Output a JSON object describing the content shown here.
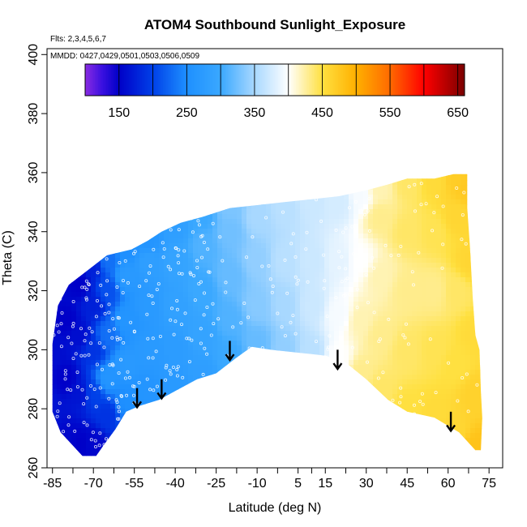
{
  "chart_data": {
    "type": "heatmap",
    "title": "ATOM4 Southbound Sunlight_Exposure",
    "subtitle_flights": "Flts: 2,3,4,5,6,7",
    "subtitle_dates": "MMDD: 0427,0429,0501,0503,0506,0509",
    "xlabel": "Latitude (deg N)",
    "ylabel": "Theta (C)",
    "xlim": [
      -87,
      80
    ],
    "ylim": [
      260,
      402
    ],
    "x_ticks": [
      -85,
      -70,
      -55,
      -40,
      -25,
      -10,
      5,
      15,
      30,
      45,
      60,
      75
    ],
    "x_tick_labels": [
      "-85",
      "-70",
      "-55",
      "-40",
      "-25",
      "-10",
      "5",
      "15",
      "30",
      "45",
      "60",
      "75"
    ],
    "x_minor_ticks": [
      -77.5,
      -62.5,
      -47.5,
      -32.5,
      -17.5,
      -2.5,
      10,
      22.5,
      37.5,
      52.5,
      67.5
    ],
    "y_ticks": [
      260,
      280,
      300,
      320,
      340,
      360,
      380,
      400
    ],
    "y_tick_labels": [
      "260",
      "280",
      "300",
      "320",
      "340",
      "360",
      "380",
      "400"
    ],
    "colorbar": {
      "min": 100,
      "max": 660,
      "ticks": [
        150,
        250,
        350,
        450,
        550,
        650
      ],
      "tick_labels": [
        "150",
        "250",
        "350",
        "450",
        "550",
        "650"
      ],
      "divisions": [
        150,
        200,
        250,
        300,
        350,
        400,
        450,
        500,
        550,
        600,
        650
      ],
      "stops": [
        {
          "value": 100,
          "color": "#8a2be2"
        },
        {
          "value": 125,
          "color": "#3a10e0"
        },
        {
          "value": 150,
          "color": "#0000c8"
        },
        {
          "value": 200,
          "color": "#0040e8"
        },
        {
          "value": 250,
          "color": "#1e90ff"
        },
        {
          "value": 300,
          "color": "#3aa8ff"
        },
        {
          "value": 350,
          "color": "#a8d8ff"
        },
        {
          "value": 400,
          "color": "#ffffff"
        },
        {
          "value": 450,
          "color": "#ffe040"
        },
        {
          "value": 500,
          "color": "#ffb000"
        },
        {
          "value": 550,
          "color": "#ff6a00"
        },
        {
          "value": 600,
          "color": "#ff0000"
        },
        {
          "value": 660,
          "color": "#7a0000"
        }
      ]
    },
    "domain_outline": [
      [
        -85,
        279
      ],
      [
        -85,
        302
      ],
      [
        -83,
        315
      ],
      [
        -79,
        322
      ],
      [
        -72,
        327
      ],
      [
        -65,
        332
      ],
      [
        -56,
        334
      ],
      [
        -50,
        337
      ],
      [
        -45,
        340
      ],
      [
        -38,
        343
      ],
      [
        -30,
        345
      ],
      [
        -20,
        348
      ],
      [
        -10,
        349
      ],
      [
        0,
        350
      ],
      [
        10,
        351
      ],
      [
        20,
        352
      ],
      [
        30,
        354
      ],
      [
        38,
        356
      ],
      [
        45,
        358
      ],
      [
        55,
        358
      ],
      [
        62,
        359.5
      ],
      [
        67,
        359.5
      ],
      [
        67,
        348
      ],
      [
        68,
        335
      ],
      [
        69,
        318
      ],
      [
        70,
        305
      ],
      [
        71.5,
        300
      ],
      [
        72,
        286
      ],
      [
        72.5,
        277
      ],
      [
        72,
        266
      ],
      [
        70,
        266
      ],
      [
        64,
        272
      ],
      [
        55,
        277
      ],
      [
        45,
        279
      ],
      [
        38,
        283
      ],
      [
        30,
        290
      ],
      [
        22,
        296
      ],
      [
        15,
        298
      ],
      [
        5,
        299
      ],
      [
        -5,
        300
      ],
      [
        -12,
        301
      ],
      [
        -18,
        297
      ],
      [
        -25,
        292
      ],
      [
        -32,
        290
      ],
      [
        -40,
        286
      ],
      [
        -46,
        283
      ],
      [
        -53,
        281
      ],
      [
        -58,
        279
      ],
      [
        -62,
        273
      ],
      [
        -66,
        268
      ],
      [
        -69,
        264
      ],
      [
        -74,
        264
      ],
      [
        -78,
        268
      ],
      [
        -82,
        272
      ]
    ],
    "field_samples": [
      [
        -85,
        280,
        165
      ],
      [
        -85,
        300,
        160
      ],
      [
        -80,
        270,
        155
      ],
      [
        -80,
        290,
        150
      ],
      [
        -80,
        310,
        150
      ],
      [
        -75,
        268,
        150
      ],
      [
        -75,
        285,
        165
      ],
      [
        -75,
        305,
        160
      ],
      [
        -75,
        322,
        150
      ],
      [
        -70,
        268,
        155
      ],
      [
        -70,
        285,
        200
      ],
      [
        -70,
        300,
        190
      ],
      [
        -70,
        315,
        175
      ],
      [
        -70,
        328,
        175
      ],
      [
        -65,
        278,
        190
      ],
      [
        -65,
        290,
        260
      ],
      [
        -65,
        305,
        230
      ],
      [
        -65,
        320,
        210
      ],
      [
        -65,
        330,
        230
      ],
      [
        -58,
        282,
        250
      ],
      [
        -58,
        295,
        270
      ],
      [
        -58,
        310,
        260
      ],
      [
        -58,
        325,
        270
      ],
      [
        -58,
        334,
        250
      ],
      [
        -50,
        285,
        260
      ],
      [
        -50,
        300,
        270
      ],
      [
        -50,
        315,
        270
      ],
      [
        -50,
        330,
        280
      ],
      [
        -50,
        337,
        260
      ],
      [
        -40,
        288,
        270
      ],
      [
        -40,
        300,
        275
      ],
      [
        -40,
        315,
        285
      ],
      [
        -40,
        330,
        290
      ],
      [
        -40,
        342,
        280
      ],
      [
        -30,
        292,
        280
      ],
      [
        -30,
        305,
        290
      ],
      [
        -30,
        320,
        300
      ],
      [
        -30,
        335,
        310
      ],
      [
        -30,
        345,
        300
      ],
      [
        -20,
        298,
        300
      ],
      [
        -20,
        310,
        310
      ],
      [
        -20,
        325,
        320
      ],
      [
        -20,
        340,
        325
      ],
      [
        -20,
        348,
        330
      ],
      [
        -10,
        302,
        320
      ],
      [
        -10,
        315,
        335
      ],
      [
        -10,
        330,
        340
      ],
      [
        -10,
        345,
        350
      ],
      [
        0,
        300,
        340
      ],
      [
        0,
        315,
        350
      ],
      [
        0,
        330,
        360
      ],
      [
        0,
        348,
        360
      ],
      [
        10,
        299,
        360
      ],
      [
        10,
        315,
        370
      ],
      [
        10,
        330,
        370
      ],
      [
        10,
        350,
        370
      ],
      [
        20,
        297,
        400
      ],
      [
        20,
        312,
        395
      ],
      [
        20,
        330,
        385
      ],
      [
        20,
        350,
        375
      ],
      [
        28,
        292,
        430
      ],
      [
        28,
        310,
        420
      ],
      [
        28,
        330,
        400
      ],
      [
        28,
        352,
        395
      ],
      [
        35,
        286,
        440
      ],
      [
        35,
        305,
        430
      ],
      [
        35,
        325,
        420
      ],
      [
        35,
        345,
        430
      ],
      [
        35,
        355,
        420
      ],
      [
        45,
        280,
        450
      ],
      [
        45,
        300,
        440
      ],
      [
        45,
        320,
        430
      ],
      [
        45,
        340,
        440
      ],
      [
        45,
        357,
        440
      ],
      [
        55,
        278,
        455
      ],
      [
        55,
        300,
        445
      ],
      [
        55,
        320,
        430
      ],
      [
        55,
        340,
        445
      ],
      [
        55,
        358,
        455
      ],
      [
        63,
        272,
        460
      ],
      [
        63,
        295,
        450
      ],
      [
        63,
        320,
        440
      ],
      [
        63,
        345,
        460
      ],
      [
        63,
        359,
        470
      ],
      [
        70,
        267,
        480
      ],
      [
        70,
        285,
        465
      ],
      [
        70,
        305,
        455
      ],
      [
        68,
        330,
        460
      ],
      [
        67,
        355,
        475
      ]
    ],
    "arrows": [
      {
        "lat": -54,
        "theta_top": 287,
        "theta_tip": 280.5
      },
      {
        "lat": -45,
        "theta_top": 290,
        "theta_tip": 283.5
      },
      {
        "lat": -20,
        "theta_top": 303,
        "theta_tip": 296.5
      },
      {
        "lat": 19.5,
        "theta_top": 300,
        "theta_tip": 293.5
      },
      {
        "lat": 61,
        "theta_top": 279,
        "theta_tip": 272.5
      }
    ]
  }
}
